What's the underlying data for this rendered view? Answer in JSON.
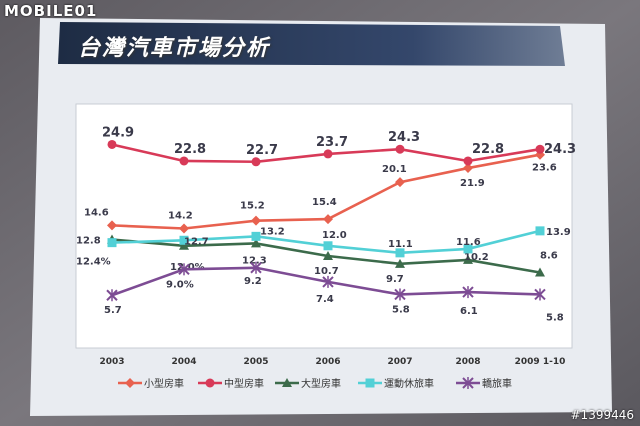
{
  "watermark": {
    "logo_text": "MOBILE01",
    "image_tag": "#1399446"
  },
  "slide": {
    "title": "台灣汽車市場分析"
  },
  "colors": {
    "slide_bg": "#eef0f4",
    "plot_bg": "#ffffff",
    "title_band": "#2c3c5a",
    "series": [
      "#e8614f",
      "#d83a58",
      "#3c6b4b",
      "#52d0d6",
      "#7d4c94"
    ]
  },
  "chart_data": {
    "type": "line",
    "title": "",
    "xlabel": "",
    "ylabel": "",
    "categories": [
      "2003",
      "2004",
      "2005",
      "2006",
      "2007",
      "2008",
      "2009 1-10"
    ],
    "ylim": [
      0,
      27
    ],
    "grid": false,
    "legend_position": "bottom",
    "series": [
      {
        "name": "小型房車",
        "marker": "diamond",
        "values": [
          14.6,
          14.2,
          15.2,
          15.4,
          20.1,
          21.9,
          23.6
        ],
        "labels": [
          "14.6",
          "14.2",
          "15.2",
          "15.4",
          "20.1",
          "21.9",
          "23.6"
        ]
      },
      {
        "name": "中型房車",
        "marker": "circle",
        "values": [
          24.9,
          22.8,
          22.7,
          23.7,
          24.3,
          22.8,
          24.3
        ],
        "labels": [
          "24.9",
          "22.8",
          "22.7",
          "23.7",
          "24.3",
          "22.8",
          "24.3"
        ]
      },
      {
        "name": "大型房車",
        "marker": "triangle",
        "values": [
          12.8,
          12.0,
          12.3,
          10.7,
          9.7,
          10.2,
          8.6
        ],
        "labels": [
          "12.8",
          "12.0%",
          "12.3",
          "10.7",
          "9.7",
          "10.2",
          "8.6"
        ]
      },
      {
        "name": "運動休旅車",
        "marker": "square",
        "values": [
          12.4,
          12.7,
          13.2,
          12.0,
          11.1,
          11.6,
          13.9
        ],
        "labels": [
          "12.4%",
          "12.7",
          "13.2",
          "12.0",
          "11.1",
          "11.6",
          "13.9"
        ]
      },
      {
        "name": "轎旅車",
        "marker": "star",
        "values": [
          5.7,
          9.0,
          9.2,
          7.4,
          5.8,
          6.1,
          5.8
        ],
        "labels": [
          "5.7",
          "9.0%",
          "9.2",
          "7.4",
          "5.8",
          "6.1",
          "5.8"
        ]
      }
    ]
  }
}
